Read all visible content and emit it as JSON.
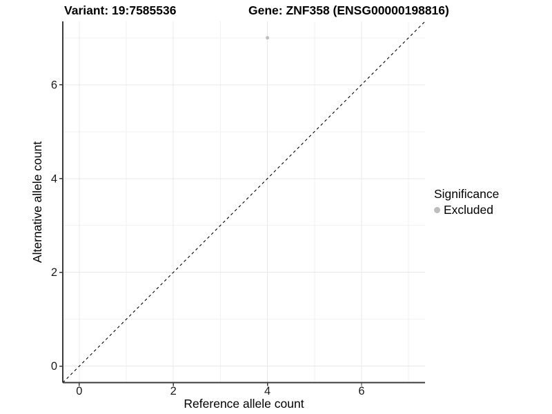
{
  "chart_data": {
    "type": "scatter",
    "title_left": "Variant: 19:7585536",
    "title_right": "Gene: ZNF358 (ENSG00000198816)",
    "xlabel": "Reference allele count",
    "ylabel": "Alternative allele count",
    "xlim": [
      -0.35,
      7.35
    ],
    "ylim": [
      -0.35,
      7.35
    ],
    "x_ticks": [
      0,
      2,
      4,
      6
    ],
    "y_ticks": [
      0,
      2,
      4,
      6
    ],
    "x_minor_gridlines": [
      1,
      3,
      5,
      7
    ],
    "y_minor_gridlines": [
      1,
      3,
      5,
      7
    ],
    "grid": true,
    "series": [
      {
        "name": "Excluded",
        "color": "#bebebe",
        "points": [
          [
            4,
            7
          ]
        ]
      }
    ],
    "reference_line": {
      "slope": 1,
      "intercept": 0,
      "style": "dashed",
      "color": "#000000"
    },
    "legend": {
      "position": "right",
      "title": "Significance",
      "entries": [
        {
          "label": "Excluded",
          "color": "#bdbdbd"
        }
      ]
    },
    "style": {
      "background": "#ffffff",
      "grid_major_color": "#e8e8e8",
      "grid_minor_color": "#f2f2f2",
      "axis_line_color": "#3a3a3a",
      "tick_label_color": "#1a1a1a",
      "point_radius": 2.5
    }
  }
}
